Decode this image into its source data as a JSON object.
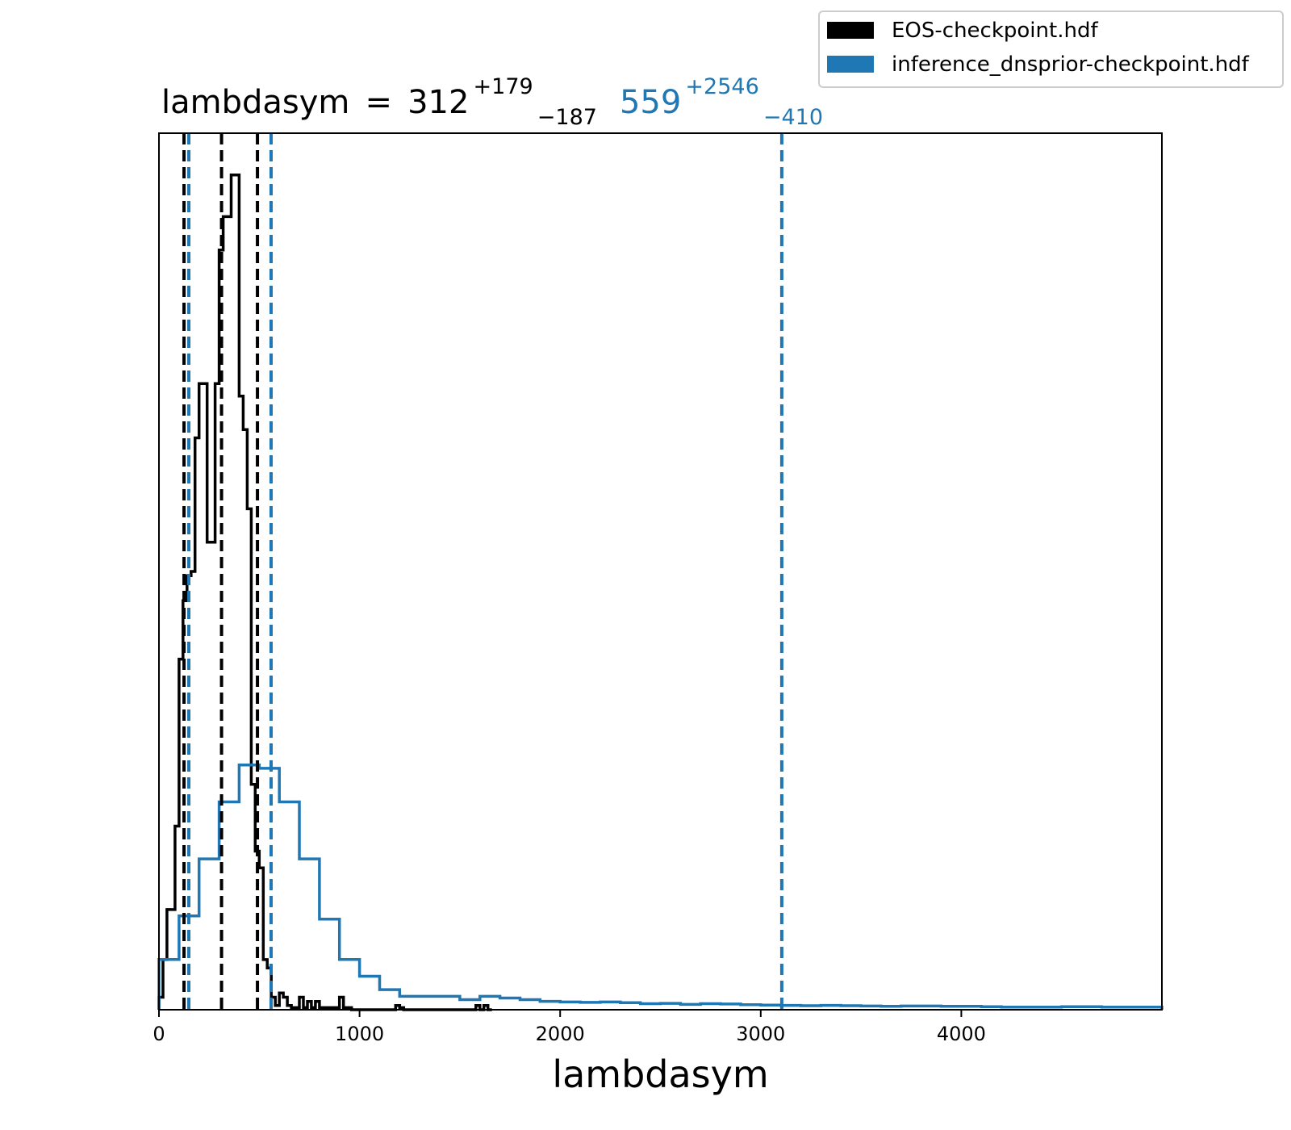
{
  "chart_data": {
    "type": "histogram",
    "xlabel": "lambdasym",
    "ylabel": "",
    "xlim": [
      0,
      5000
    ],
    "x_ticks": [
      0,
      1000,
      2000,
      3000,
      4000
    ],
    "y_ticks_visible": false,
    "grid": false,
    "legend_position": "top-right",
    "title": {
      "parameter": "lambdasym",
      "equals": "=",
      "entries": [
        {
          "median": "312",
          "plus": "+179",
          "minus": "−187",
          "color": "#000000"
        },
        {
          "median": "559",
          "plus": "+2546",
          "minus": "−410",
          "color": "#1f77b4"
        }
      ]
    },
    "series": [
      {
        "name": "EOS-checkpoint.hdf",
        "color": "#000000",
        "bin_edges": [
          0,
          20,
          40,
          60,
          80,
          100,
          120,
          140,
          160,
          180,
          200,
          220,
          240,
          260,
          280,
          300,
          320,
          340,
          360,
          380,
          400,
          420,
          440,
          460,
          480,
          500,
          520,
          540,
          560,
          580,
          600,
          620,
          640,
          660,
          680,
          700,
          720,
          740,
          760,
          780,
          800,
          820,
          840,
          860,
          880,
          900,
          920,
          940,
          960,
          980,
          1000,
          1020,
          1040,
          1060,
          1080,
          1100,
          1120,
          1140,
          1160,
          1180,
          1200,
          1220,
          1240,
          1260,
          1280,
          1300,
          1320,
          1340,
          1360,
          1380,
          1400,
          1420,
          1440,
          1460,
          1480,
          1500,
          1520,
          1540,
          1560,
          1580,
          1600,
          1620,
          1640,
          1660
        ],
        "counts": [
          3,
          12,
          24,
          24,
          44,
          84,
          98,
          104,
          105,
          137,
          150,
          150,
          112,
          112,
          150,
          182,
          190,
          190,
          200,
          200,
          147,
          139,
          120,
          54,
          38,
          34,
          12,
          10,
          3,
          1,
          4,
          3,
          1,
          0.5,
          0.5,
          3,
          0.5,
          2,
          0.5,
          2,
          0.5,
          0.5,
          0.5,
          0.5,
          0.5,
          3,
          0.5,
          0.5,
          0,
          0,
          0,
          0,
          0,
          0,
          0,
          0,
          0,
          0,
          0,
          1,
          0.5,
          0,
          0,
          0,
          0,
          0,
          0,
          0,
          0,
          0,
          0,
          0,
          0,
          0,
          0,
          0,
          0,
          0,
          0,
          1,
          0,
          1,
          0
        ],
        "quantile_lines": [
          125,
          312,
          491
        ]
      },
      {
        "name": "inference_dnsprior-checkpoint.hdf",
        "color": "#1f77b4",
        "bin_edges": [
          0,
          100,
          200,
          300,
          400,
          500,
          600,
          700,
          800,
          900,
          1000,
          1100,
          1200,
          1300,
          1400,
          1500,
          1600,
          1700,
          1800,
          1900,
          2000,
          2100,
          2200,
          2300,
          2400,
          2500,
          2600,
          2700,
          2800,
          2900,
          3000,
          3100,
          3200,
          3300,
          3400,
          3500,
          3600,
          3700,
          3800,
          3900,
          4000,
          4100,
          4200,
          4300,
          4400,
          4500,
          4600,
          4700,
          4800,
          4900,
          5000
        ],
        "counts": [
          15,
          28,
          45,
          62,
          73,
          72,
          62,
          45,
          27,
          15,
          10,
          6,
          4,
          4,
          4,
          3,
          4,
          3.5,
          3,
          2.5,
          2.3,
          2.2,
          2.3,
          2.1,
          1.8,
          1.9,
          1.6,
          1.8,
          1.7,
          1.5,
          1.4,
          1.3,
          1.2,
          1.3,
          1.2,
          1.1,
          1.0,
          1.1,
          1.1,
          1.0,
          1.0,
          0.9,
          0.8,
          0.8,
          0.8,
          0.9,
          0.9,
          0.8,
          0.8,
          0.8
        ],
        "quantile_lines": [
          149,
          559,
          3105
        ]
      }
    ]
  }
}
